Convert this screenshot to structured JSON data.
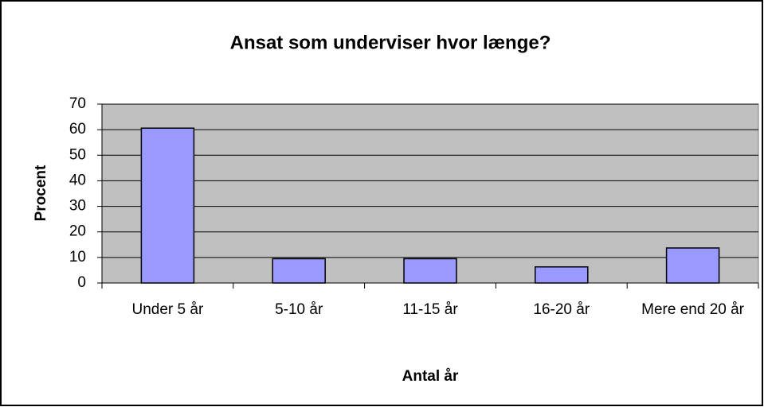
{
  "chart_data": {
    "type": "bar",
    "title": "Ansat som underviser hvor længe?",
    "x_label": "Antal år",
    "y_label": "Procent",
    "categories": [
      "Under 5 år",
      "5-10 år",
      "11-15 år",
      "16-20 år",
      "Mere end 20 år"
    ],
    "values": [
      60.6,
      9.5,
      9.5,
      6.3,
      13.7
    ],
    "color": "#9999ff",
    "ylim": [
      0,
      70
    ],
    "yticks": [
      0,
      10,
      20,
      30,
      40,
      50,
      60,
      70
    ],
    "grid": true
  }
}
